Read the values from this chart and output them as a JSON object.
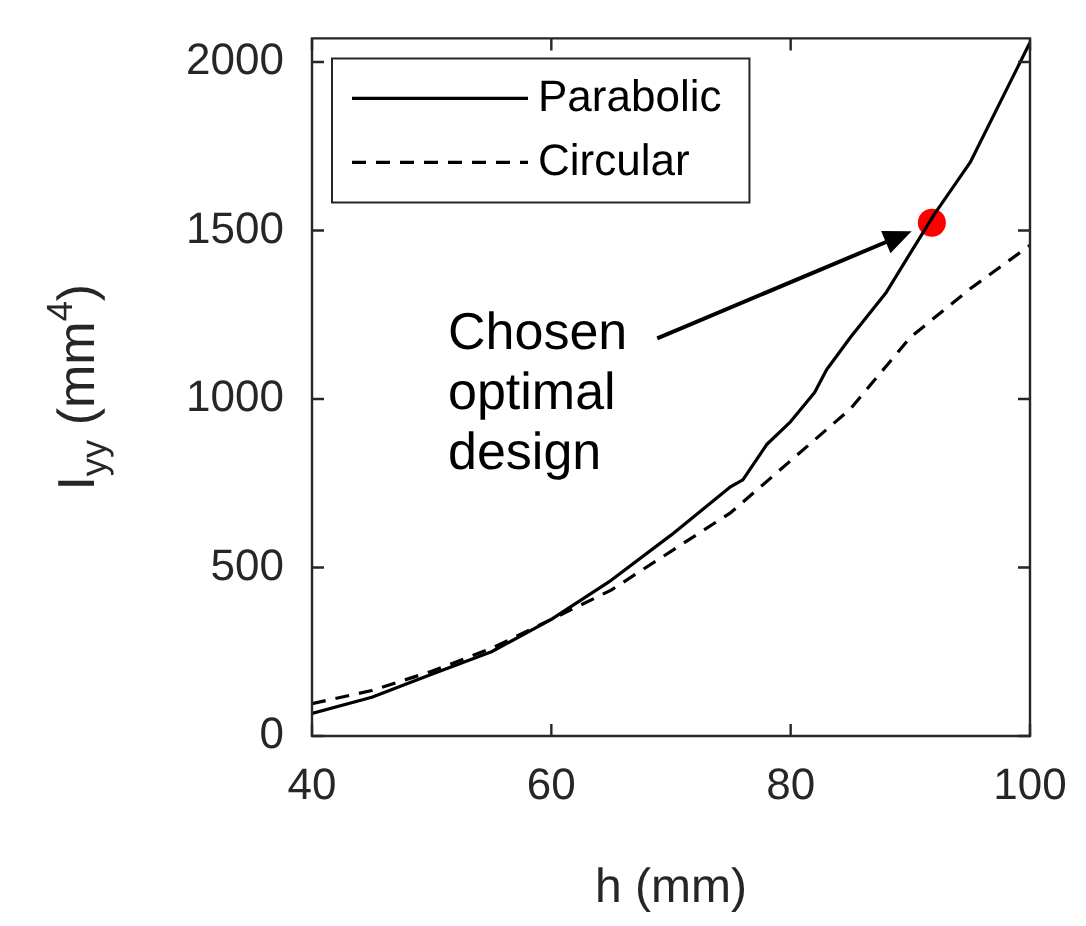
{
  "chart_data": {
    "type": "line",
    "xlabel": "h (mm)",
    "ylabel": "I$_{yy}$ (mm$^{4}$)",
    "xlim": [
      40,
      100
    ],
    "xticks": [
      40,
      60,
      80,
      100
    ],
    "ylim": [
      0,
      2070
    ],
    "yticks": [
      0,
      500,
      1000,
      1500,
      2000
    ],
    "grid": false,
    "legend": "top left",
    "marker": "none",
    "series": [
      {
        "name": "Parabolic",
        "color": "#000000",
        "line_style": "solid",
        "x": [
          40,
          45,
          50,
          55,
          60,
          65,
          70,
          75,
          76,
          78,
          80,
          82,
          83,
          85,
          88,
          90,
          92,
          95,
          100
        ],
        "values": [
          67,
          115,
          183,
          250,
          346,
          462,
          596,
          740,
          760,
          865,
          933,
          1019,
          1087,
          1183,
          1317,
          1433,
          1548,
          1702,
          2058
        ]
      },
      {
        "name": "Circular",
        "color": "#000000",
        "line_style": "dashed",
        "x": [
          40,
          45,
          50,
          55,
          60,
          65,
          70,
          75,
          80,
          85,
          90,
          95,
          100
        ],
        "values": [
          96,
          135,
          192,
          260,
          346,
          433,
          548,
          663,
          817,
          971,
          1183,
          1327,
          1456
        ]
      },
      {
        "type": "scatter",
        "color": "#ff0000",
        "marker": "circle",
        "x": [
          91.8
        ],
        "values": [
          1523
        ]
      }
    ],
    "annotations": [
      "Chosen\noptimal\ndesign"
    ]
  }
}
